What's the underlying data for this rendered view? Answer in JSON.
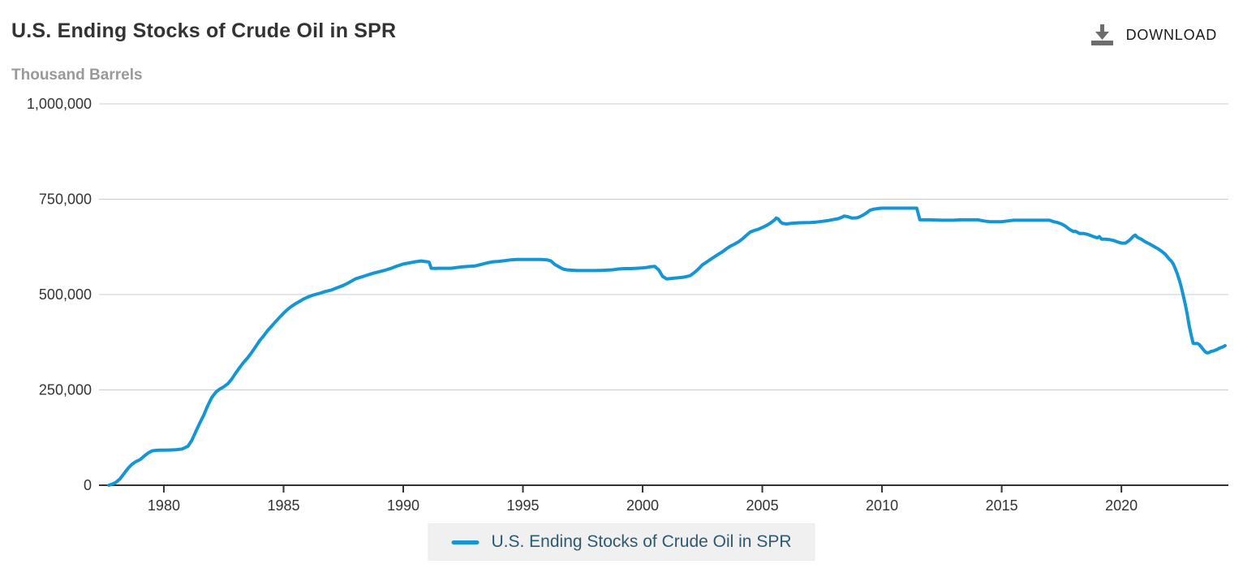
{
  "header": {
    "title": "U.S. Ending Stocks of Crude Oil in SPR",
    "download_label": "DOWNLOAD"
  },
  "axis_unit_label": "Thousand Barrels",
  "colors": {
    "line": "#1596d4",
    "grid": "#cccccc",
    "axis": "#333333",
    "tick_text": "#333333",
    "title_text": "#333333",
    "unit_text": "#999999",
    "legend_bg": "#f0f0f0",
    "legend_text": "#2c5a72",
    "download_icon": "#6d6d6d"
  },
  "legend": {
    "label": "U.S. Ending Stocks of Crude Oil in SPR"
  },
  "chart_data": {
    "type": "line",
    "title": "U.S. Ending Stocks of Crude Oil in SPR",
    "ylabel": "Thousand Barrels",
    "xlabel": "",
    "ylim": [
      0,
      1000000
    ],
    "xlim": [
      1977.29,
      2024.47
    ],
    "grid": "horizontal",
    "legend_position": "bottom",
    "y_tick_values": [
      0,
      250000,
      500000,
      750000,
      1000000
    ],
    "y_tick_labels": [
      "0",
      "250,000",
      "500,000",
      "750,000",
      "1,000,000"
    ],
    "x_tick_values": [
      1980,
      1985,
      1990,
      1995,
      2000,
      2005,
      2010,
      2015,
      2020
    ],
    "x_tick_labels": [
      "1980",
      "1985",
      "1990",
      "1995",
      "2000",
      "2005",
      "2010",
      "2015",
      "2020"
    ],
    "series": [
      {
        "name": "U.S. Ending Stocks of Crude Oil in SPR",
        "color": "#1596d4",
        "units": "thousand barrels",
        "points": [
          [
            1977.7,
            0
          ],
          [
            1977.85,
            3000
          ],
          [
            1978.0,
            7500
          ],
          [
            1978.17,
            17000
          ],
          [
            1978.33,
            30000
          ],
          [
            1978.5,
            44000
          ],
          [
            1978.67,
            55000
          ],
          [
            1978.83,
            62000
          ],
          [
            1979.0,
            67000
          ],
          [
            1979.17,
            76000
          ],
          [
            1979.33,
            84000
          ],
          [
            1979.5,
            90000
          ],
          [
            1979.67,
            91500
          ],
          [
            1979.83,
            92000
          ],
          [
            1980.0,
            92000
          ],
          [
            1980.25,
            92300
          ],
          [
            1980.5,
            93000
          ],
          [
            1980.75,
            95000
          ],
          [
            1981.0,
            102000
          ],
          [
            1981.17,
            118000
          ],
          [
            1981.33,
            140000
          ],
          [
            1981.5,
            163000
          ],
          [
            1981.67,
            184000
          ],
          [
            1981.83,
            208000
          ],
          [
            1982.0,
            230000
          ],
          [
            1982.17,
            244000
          ],
          [
            1982.33,
            252000
          ],
          [
            1982.5,
            258000
          ],
          [
            1982.67,
            266000
          ],
          [
            1982.83,
            278000
          ],
          [
            1983.0,
            294000
          ],
          [
            1983.17,
            309000
          ],
          [
            1983.33,
            322000
          ],
          [
            1983.5,
            334000
          ],
          [
            1983.67,
            348000
          ],
          [
            1983.83,
            363000
          ],
          [
            1984.0,
            379000
          ],
          [
            1984.17,
            392000
          ],
          [
            1984.33,
            405000
          ],
          [
            1984.5,
            417000
          ],
          [
            1984.67,
            429000
          ],
          [
            1984.83,
            440000
          ],
          [
            1985.0,
            451000
          ],
          [
            1985.17,
            461000
          ],
          [
            1985.33,
            469000
          ],
          [
            1985.5,
            476000
          ],
          [
            1985.67,
            482000
          ],
          [
            1985.83,
            488000
          ],
          [
            1986.0,
            493000
          ],
          [
            1986.25,
            499000
          ],
          [
            1986.5,
            503000
          ],
          [
            1986.75,
            508000
          ],
          [
            1987.0,
            512000
          ],
          [
            1987.25,
            518000
          ],
          [
            1987.5,
            524000
          ],
          [
            1987.75,
            532000
          ],
          [
            1988.0,
            541000
          ],
          [
            1988.25,
            546000
          ],
          [
            1988.5,
            551000
          ],
          [
            1988.75,
            556000
          ],
          [
            1989.0,
            560000
          ],
          [
            1989.25,
            564000
          ],
          [
            1989.5,
            569000
          ],
          [
            1989.75,
            575000
          ],
          [
            1990.0,
            580000
          ],
          [
            1990.25,
            583000
          ],
          [
            1990.5,
            586000
          ],
          [
            1990.75,
            588000
          ],
          [
            1991.0,
            586000
          ],
          [
            1991.08,
            585000
          ],
          [
            1991.17,
            569000
          ],
          [
            1991.33,
            568500
          ],
          [
            1991.5,
            569000
          ],
          [
            1991.75,
            569000
          ],
          [
            1992.0,
            569000
          ],
          [
            1992.25,
            571000
          ],
          [
            1992.5,
            573000
          ],
          [
            1992.75,
            574000
          ],
          [
            1993.0,
            575000
          ],
          [
            1993.25,
            579000
          ],
          [
            1993.5,
            583000
          ],
          [
            1993.75,
            586000
          ],
          [
            1994.0,
            587000
          ],
          [
            1994.25,
            589000
          ],
          [
            1994.5,
            591000
          ],
          [
            1994.75,
            592000
          ],
          [
            1995.0,
            592000
          ],
          [
            1995.25,
            592000
          ],
          [
            1995.5,
            592000
          ],
          [
            1995.75,
            592000
          ],
          [
            1996.0,
            591000
          ],
          [
            1996.17,
            588000
          ],
          [
            1996.33,
            579000
          ],
          [
            1996.5,
            573000
          ],
          [
            1996.67,
            567000
          ],
          [
            1996.83,
            565000
          ],
          [
            1997.0,
            564000
          ],
          [
            1997.25,
            563000
          ],
          [
            1997.5,
            563000
          ],
          [
            1997.75,
            563000
          ],
          [
            1998.0,
            563000
          ],
          [
            1998.25,
            563500
          ],
          [
            1998.5,
            564000
          ],
          [
            1998.75,
            565000
          ],
          [
            1999.0,
            567000
          ],
          [
            1999.25,
            568000
          ],
          [
            1999.5,
            568000
          ],
          [
            1999.75,
            569000
          ],
          [
            2000.0,
            570000
          ],
          [
            2000.17,
            571000
          ],
          [
            2000.33,
            573000
          ],
          [
            2000.5,
            574000
          ],
          [
            2000.67,
            565000
          ],
          [
            2000.83,
            548000
          ],
          [
            2001.0,
            541000
          ],
          [
            2001.17,
            542000
          ],
          [
            2001.33,
            543000
          ],
          [
            2001.5,
            544000
          ],
          [
            2001.67,
            545000
          ],
          [
            2001.83,
            547000
          ],
          [
            2002.0,
            550000
          ],
          [
            2002.17,
            558000
          ],
          [
            2002.33,
            567000
          ],
          [
            2002.5,
            578000
          ],
          [
            2002.67,
            585000
          ],
          [
            2002.83,
            592000
          ],
          [
            2003.0,
            599000
          ],
          [
            2003.17,
            606000
          ],
          [
            2003.33,
            612000
          ],
          [
            2003.5,
            620000
          ],
          [
            2003.67,
            627000
          ],
          [
            2003.83,
            632000
          ],
          [
            2004.0,
            638000
          ],
          [
            2004.17,
            646000
          ],
          [
            2004.33,
            655000
          ],
          [
            2004.5,
            664000
          ],
          [
            2004.67,
            668000
          ],
          [
            2004.83,
            671000
          ],
          [
            2005.0,
            676000
          ],
          [
            2005.17,
            681000
          ],
          [
            2005.33,
            687000
          ],
          [
            2005.5,
            695000
          ],
          [
            2005.58,
            700700
          ],
          [
            2005.67,
            698000
          ],
          [
            2005.75,
            691000
          ],
          [
            2005.83,
            687000
          ],
          [
            2006.0,
            685000
          ],
          [
            2006.25,
            687000
          ],
          [
            2006.5,
            688000
          ],
          [
            2006.75,
            688500
          ],
          [
            2007.0,
            689000
          ],
          [
            2007.25,
            690000
          ],
          [
            2007.5,
            692000
          ],
          [
            2007.75,
            694000
          ],
          [
            2008.0,
            697000
          ],
          [
            2008.17,
            699000
          ],
          [
            2008.33,
            703000
          ],
          [
            2008.42,
            706000
          ],
          [
            2008.58,
            704000
          ],
          [
            2008.75,
            700500
          ],
          [
            2008.92,
            701000
          ],
          [
            2009.0,
            702000
          ],
          [
            2009.17,
            707000
          ],
          [
            2009.33,
            713000
          ],
          [
            2009.5,
            721000
          ],
          [
            2009.67,
            724000
          ],
          [
            2009.83,
            725500
          ],
          [
            2010.0,
            726500
          ],
          [
            2010.25,
            726500
          ],
          [
            2010.5,
            726500
          ],
          [
            2010.75,
            726500
          ],
          [
            2011.0,
            726500
          ],
          [
            2011.17,
            726500
          ],
          [
            2011.33,
            726500
          ],
          [
            2011.45,
            726500
          ],
          [
            2011.58,
            696000
          ],
          [
            2011.75,
            696000
          ],
          [
            2012.0,
            696000
          ],
          [
            2012.25,
            695500
          ],
          [
            2012.5,
            695000
          ],
          [
            2012.75,
            695000
          ],
          [
            2013.0,
            695000
          ],
          [
            2013.25,
            696000
          ],
          [
            2013.5,
            696000
          ],
          [
            2013.75,
            696000
          ],
          [
            2014.0,
            696000
          ],
          [
            2014.25,
            693000
          ],
          [
            2014.5,
            691000
          ],
          [
            2014.75,
            691000
          ],
          [
            2015.0,
            691000
          ],
          [
            2015.25,
            693000
          ],
          [
            2015.5,
            695000
          ],
          [
            2015.75,
            695000
          ],
          [
            2016.0,
            695000
          ],
          [
            2016.25,
            695000
          ],
          [
            2016.5,
            695000
          ],
          [
            2016.75,
            695000
          ],
          [
            2017.0,
            695000
          ],
          [
            2017.17,
            691000
          ],
          [
            2017.33,
            689000
          ],
          [
            2017.5,
            685000
          ],
          [
            2017.67,
            679000
          ],
          [
            2017.83,
            671000
          ],
          [
            2018.0,
            665000
          ],
          [
            2018.08,
            666000
          ],
          [
            2018.25,
            660000
          ],
          [
            2018.42,
            660000
          ],
          [
            2018.58,
            658000
          ],
          [
            2018.75,
            654000
          ],
          [
            2018.92,
            650000
          ],
          [
            2019.0,
            649000
          ],
          [
            2019.08,
            652000
          ],
          [
            2019.17,
            645000
          ],
          [
            2019.33,
            645000
          ],
          [
            2019.5,
            644000
          ],
          [
            2019.67,
            642000
          ],
          [
            2019.83,
            638000
          ],
          [
            2020.0,
            635000
          ],
          [
            2020.17,
            635000
          ],
          [
            2020.33,
            642000
          ],
          [
            2020.5,
            653000
          ],
          [
            2020.58,
            656000
          ],
          [
            2020.67,
            650000
          ],
          [
            2020.83,
            645000
          ],
          [
            2021.0,
            638000
          ],
          [
            2021.17,
            633000
          ],
          [
            2021.33,
            627000
          ],
          [
            2021.5,
            621000
          ],
          [
            2021.67,
            614000
          ],
          [
            2021.83,
            606000
          ],
          [
            2022.0,
            593000
          ],
          [
            2022.08,
            588000
          ],
          [
            2022.17,
            580000
          ],
          [
            2022.25,
            568000
          ],
          [
            2022.33,
            555000
          ],
          [
            2022.42,
            538000
          ],
          [
            2022.5,
            520000
          ],
          [
            2022.58,
            499000
          ],
          [
            2022.67,
            474000
          ],
          [
            2022.75,
            448000
          ],
          [
            2022.83,
            419000
          ],
          [
            2022.92,
            392000
          ],
          [
            2023.0,
            372000
          ],
          [
            2023.08,
            371500
          ],
          [
            2023.17,
            372000
          ],
          [
            2023.25,
            369000
          ],
          [
            2023.33,
            363000
          ],
          [
            2023.42,
            356000
          ],
          [
            2023.5,
            350000
          ],
          [
            2023.58,
            347000
          ],
          [
            2023.67,
            348000
          ],
          [
            2023.75,
            351000
          ],
          [
            2023.83,
            352000
          ],
          [
            2023.92,
            354000
          ],
          [
            2024.0,
            356000
          ],
          [
            2024.08,
            359000
          ],
          [
            2024.17,
            361000
          ],
          [
            2024.25,
            363000
          ],
          [
            2024.33,
            366000
          ]
        ]
      }
    ]
  }
}
